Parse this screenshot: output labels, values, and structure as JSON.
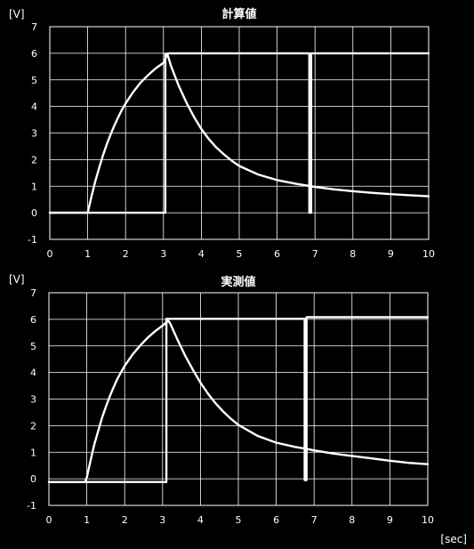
{
  "chart_data": [
    {
      "type": "line",
      "title": "計算値",
      "ylabel": "[V]",
      "xlabel": "",
      "xlim": [
        0,
        10
      ],
      "ylim": [
        -1,
        7
      ],
      "xticks": [
        0,
        1,
        2,
        3,
        4,
        5,
        6,
        7,
        8,
        9,
        10
      ],
      "yticks": [
        -1,
        0,
        1,
        2,
        3,
        4,
        5,
        6,
        7
      ],
      "grid": true,
      "series": [
        {
          "values": [
            [
              0,
              0
            ],
            [
              1.0,
              0
            ],
            [
              1.1,
              0.62
            ],
            [
              1.2,
              1.18
            ],
            [
              1.3,
              1.68
            ],
            [
              1.4,
              2.14
            ],
            [
              1.5,
              2.56
            ],
            [
              1.6,
              2.93
            ],
            [
              1.7,
              3.27
            ],
            [
              1.8,
              3.58
            ],
            [
              1.9,
              3.86
            ],
            [
              2.0,
              4.11
            ],
            [
              2.2,
              4.54
            ],
            [
              2.4,
              4.9
            ],
            [
              2.6,
              5.19
            ],
            [
              2.8,
              5.44
            ],
            [
              3.0,
              5.64
            ],
            [
              3.1,
              5.98
            ],
            [
              3.2,
              5.52
            ],
            [
              3.4,
              4.79
            ],
            [
              3.6,
              4.16
            ],
            [
              3.8,
              3.62
            ],
            [
              4.0,
              3.15
            ],
            [
              4.2,
              2.77
            ],
            [
              4.4,
              2.45
            ],
            [
              4.6,
              2.19
            ],
            [
              4.8,
              1.96
            ],
            [
              5.0,
              1.76
            ],
            [
              5.5,
              1.44
            ],
            [
              6.0,
              1.23
            ],
            [
              6.5,
              1.09
            ],
            [
              6.9,
              1.0
            ],
            [
              7.0,
              0.97
            ],
            [
              7.5,
              0.88
            ],
            [
              8.0,
              0.81
            ],
            [
              8.5,
              0.75
            ],
            [
              9.0,
              0.7
            ],
            [
              9.5,
              0.66
            ],
            [
              10.0,
              0.62
            ]
          ]
        },
        {
          "values": [
            [
              0,
              0
            ],
            [
              3.05,
              0
            ],
            [
              3.05,
              5.98
            ],
            [
              3.12,
              5.98
            ],
            [
              3.12,
              6.0
            ],
            [
              6.85,
              6.0
            ],
            [
              6.85,
              0
            ],
            [
              6.9,
              0
            ],
            [
              6.9,
              6.0
            ],
            [
              10.0,
              6.0
            ]
          ]
        }
      ]
    },
    {
      "type": "line",
      "title": "実測値",
      "ylabel": "[V]",
      "xlabel": "[sec]",
      "xlim": [
        0,
        10
      ],
      "ylim": [
        -1,
        7
      ],
      "xticks": [
        0,
        1,
        2,
        3,
        4,
        5,
        6,
        7,
        8,
        9,
        10
      ],
      "yticks": [
        -1,
        0,
        1,
        2,
        3,
        4,
        5,
        6,
        7
      ],
      "grid": true,
      "series": [
        {
          "values": [
            [
              0,
              -0.12
            ],
            [
              0.95,
              -0.12
            ],
            [
              1.0,
              0.05
            ],
            [
              1.1,
              0.7
            ],
            [
              1.2,
              1.3
            ],
            [
              1.3,
              1.8
            ],
            [
              1.4,
              2.28
            ],
            [
              1.5,
              2.7
            ],
            [
              1.6,
              3.08
            ],
            [
              1.7,
              3.42
            ],
            [
              1.8,
              3.74
            ],
            [
              1.9,
              4.0
            ],
            [
              2.0,
              4.25
            ],
            [
              2.2,
              4.66
            ],
            [
              2.4,
              5.0
            ],
            [
              2.6,
              5.3
            ],
            [
              2.8,
              5.55
            ],
            [
              3.0,
              5.76
            ],
            [
              3.15,
              5.95
            ],
            [
              3.2,
              5.85
            ],
            [
              3.4,
              5.22
            ],
            [
              3.6,
              4.62
            ],
            [
              3.8,
              4.1
            ],
            [
              4.0,
              3.62
            ],
            [
              4.2,
              3.2
            ],
            [
              4.4,
              2.84
            ],
            [
              4.6,
              2.53
            ],
            [
              4.8,
              2.26
            ],
            [
              5.0,
              2.03
            ],
            [
              5.5,
              1.62
            ],
            [
              6.0,
              1.36
            ],
            [
              6.5,
              1.2
            ],
            [
              6.8,
              1.13
            ],
            [
              7.0,
              1.07
            ],
            [
              7.5,
              0.95
            ],
            [
              8.0,
              0.86
            ],
            [
              8.5,
              0.77
            ],
            [
              9.0,
              0.68
            ],
            [
              9.5,
              0.6
            ],
            [
              10.0,
              0.55
            ]
          ]
        },
        {
          "values": [
            [
              0,
              -0.12
            ],
            [
              3.1,
              -0.12
            ],
            [
              3.1,
              6.02
            ],
            [
              6.75,
              6.02
            ],
            [
              6.75,
              -0.05
            ],
            [
              6.8,
              -0.05
            ],
            [
              6.8,
              6.08
            ],
            [
              10.0,
              6.08
            ]
          ]
        }
      ]
    }
  ]
}
